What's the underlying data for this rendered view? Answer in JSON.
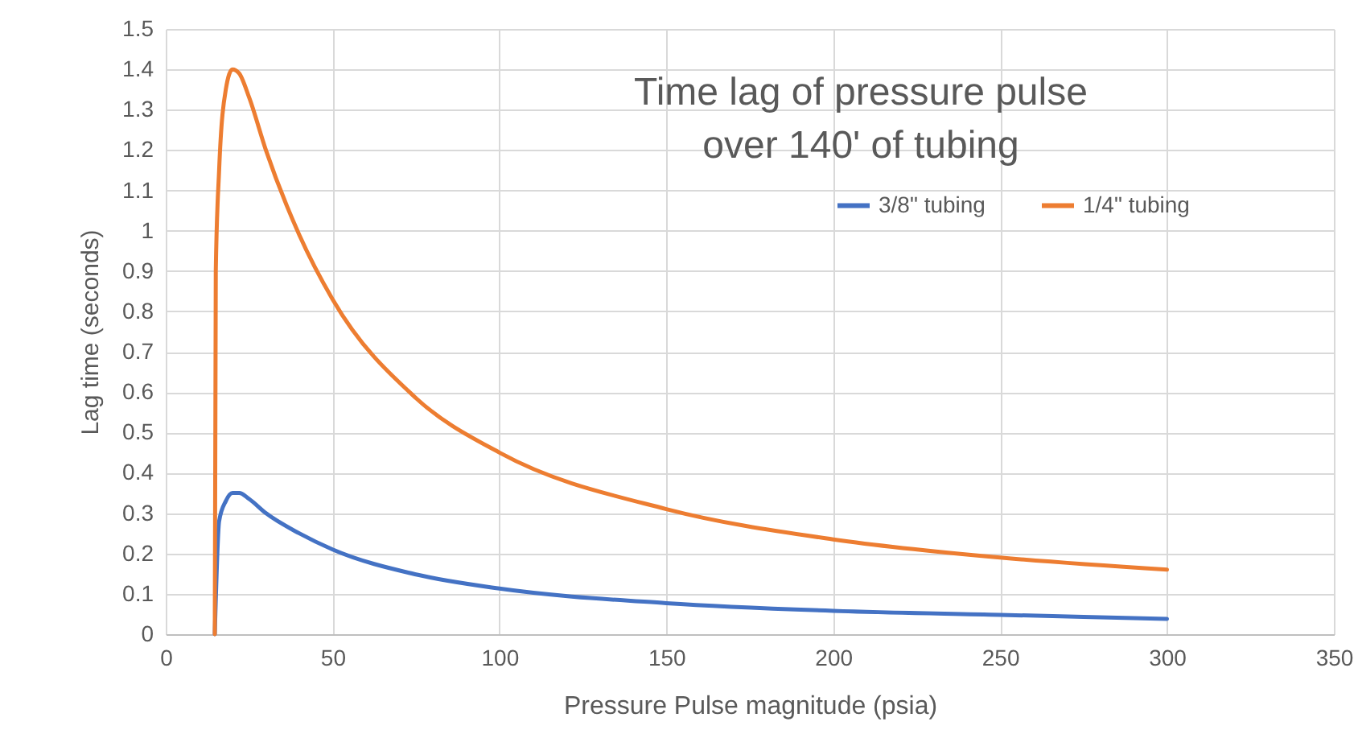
{
  "chart_data": {
    "type": "line",
    "title": "Time lag of pressure pulse\nover 140' of tubing",
    "xlabel": "Pressure Pulse magnitude (psia)",
    "ylabel": "Lag time (seconds)",
    "xlim": [
      0,
      350
    ],
    "xticks": [
      0,
      50,
      100,
      150,
      200,
      250,
      300,
      350
    ],
    "ylim": [
      0,
      1.5
    ],
    "yticks": [
      0,
      0.1,
      0.2,
      0.3,
      0.4,
      0.5,
      0.6,
      0.7,
      0.8,
      0.9,
      1,
      1.1,
      1.2,
      1.3,
      1.4,
      1.5
    ],
    "grid": true,
    "legend": "top right",
    "marker": "none",
    "line_style": "solid",
    "series": [
      {
        "name": "3/8\" tubing",
        "color": "#4472c4",
        "x": [
          14.7,
          16,
          18,
          20,
          22,
          25,
          30,
          40,
          50,
          75,
          100,
          150,
          200,
          250,
          300
        ],
        "values": [
          0,
          0.28,
          0.33,
          0.35,
          0.35,
          0.335,
          0.3,
          0.25,
          0.21,
          0.148,
          0.113,
          0.077,
          0.058,
          0.048,
          0.038
        ]
      },
      {
        "name": "1/4\" tubing",
        "color": "#ed7d31",
        "x": [
          14.7,
          15,
          16,
          18,
          20,
          22,
          25,
          30,
          40,
          50,
          75,
          100,
          150,
          200,
          250,
          300
        ],
        "values": [
          0,
          0.9,
          1.15,
          1.35,
          1.4,
          1.39,
          1.33,
          1.2,
          0.99,
          0.83,
          0.585,
          0.45,
          0.31,
          0.235,
          0.19,
          0.16
        ]
      }
    ]
  }
}
